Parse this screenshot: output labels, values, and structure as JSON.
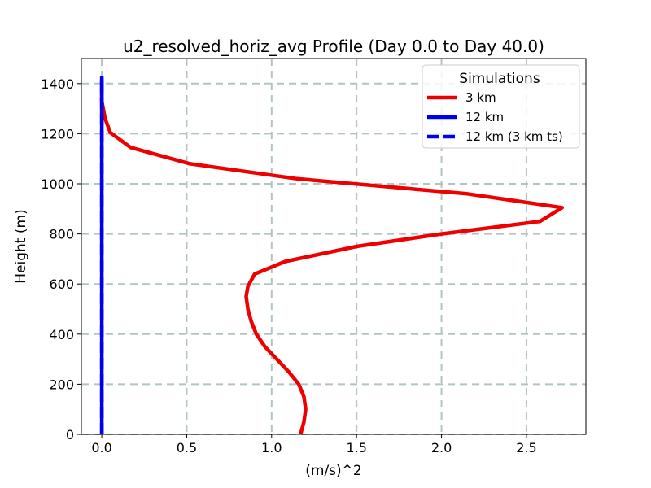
{
  "chart_data": {
    "type": "line",
    "title": "u2_resolved_horiz_avg Profile (Day 0.0 to Day 40.0)",
    "xlabel": "(m/s)^2",
    "ylabel": "Height (m)",
    "xlim": [
      -0.12,
      2.85
    ],
    "ylim": [
      0,
      1500
    ],
    "xticks": [
      0.0,
      0.5,
      1.0,
      1.5,
      2.0,
      2.5
    ],
    "xtick_labels": [
      "0.0",
      "0.5",
      "1.0",
      "1.5",
      "2.0",
      "2.5"
    ],
    "yticks": [
      0,
      200,
      400,
      600,
      800,
      1000,
      1200,
      1400
    ],
    "ytick_labels": [
      "0",
      "200",
      "400",
      "600",
      "800",
      "1000",
      "1200",
      "1400"
    ],
    "grid": true,
    "legend": {
      "title": "Simulations",
      "position": "top-right"
    },
    "series": [
      {
        "name": "3 km",
        "color": "#ee0000",
        "style": "solid",
        "x": [
          1.17,
          1.19,
          1.2,
          1.19,
          1.16,
          1.1,
          1.03,
          0.96,
          0.91,
          0.88,
          0.86,
          0.85,
          0.86,
          0.9,
          1.08,
          1.5,
          2.0,
          2.58,
          2.71,
          2.15,
          1.15,
          0.52,
          0.17,
          0.05,
          0.02,
          0.0,
          0.0
        ],
        "y": [
          0,
          50,
          100,
          150,
          200,
          250,
          300,
          350,
          400,
          450,
          500,
          550,
          590,
          640,
          690,
          750,
          800,
          850,
          905,
          960,
          1020,
          1080,
          1145,
          1205,
          1260,
          1330,
          1420
        ]
      },
      {
        "name": "12 km",
        "color": "#0000ee",
        "style": "solid",
        "x": [
          0.0,
          0.0,
          0.0
        ],
        "y": [
          0,
          700,
          1430
        ]
      },
      {
        "name": "12 km (3 km ts)",
        "color": "#0000ee",
        "style": "dashed",
        "x": [
          0.0,
          0.0,
          0.0
        ],
        "y": [
          0,
          700,
          1430
        ]
      }
    ]
  }
}
